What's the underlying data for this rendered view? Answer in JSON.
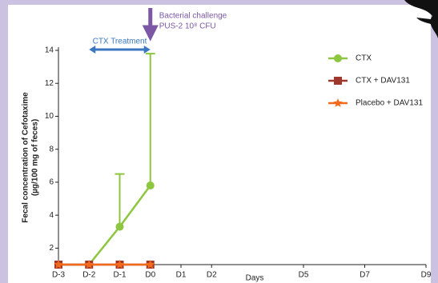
{
  "chart_data": {
    "type": "line",
    "xlabel": "Days",
    "ylabel": [
      "Fecal concentration of Cefotaxime",
      "(µg/100 mg of feces)"
    ],
    "annotations": {
      "challenge": [
        "Bacterial challenge",
        "PUS-2 10⁸ CFU"
      ],
      "treatment": "CTX Treatment"
    },
    "xlim": [
      -3,
      9
    ],
    "xticks": [
      {
        "value": -3,
        "label": "D-3"
      },
      {
        "value": -2,
        "label": "D-2"
      },
      {
        "value": -1,
        "label": "D-1"
      },
      {
        "value": 0,
        "label": "D0"
      },
      {
        "value": 1,
        "label": "D1"
      },
      {
        "value": 2,
        "label": "D2"
      },
      {
        "value": 5,
        "label": "D5"
      },
      {
        "value": 7,
        "label": "D7"
      },
      {
        "value": 9,
        "label": "D9"
      }
    ],
    "ylim": [
      1,
      14
    ],
    "yticks": [
      2,
      4,
      6,
      8,
      10,
      12,
      14
    ],
    "series": [
      {
        "name": "CTX",
        "color": "#8dc63f",
        "marker": "circle",
        "x": [
          -3,
          -2,
          -1,
          0
        ],
        "values": [
          1,
          1,
          3.3,
          5.8
        ],
        "errors": [
          null,
          null,
          3.2,
          8
        ]
      },
      {
        "name": "CTX + DAV131",
        "color": "#a0372c",
        "marker": "square",
        "x": [
          -3,
          -2,
          -1,
          0
        ],
        "values": [
          1,
          1,
          1,
          1
        ]
      },
      {
        "name": "Placebo + DAV131",
        "color": "#f26b1d",
        "marker": "star",
        "x": [
          -3,
          -2,
          -1,
          0
        ],
        "values": [
          1,
          1,
          1,
          1
        ]
      }
    ]
  }
}
